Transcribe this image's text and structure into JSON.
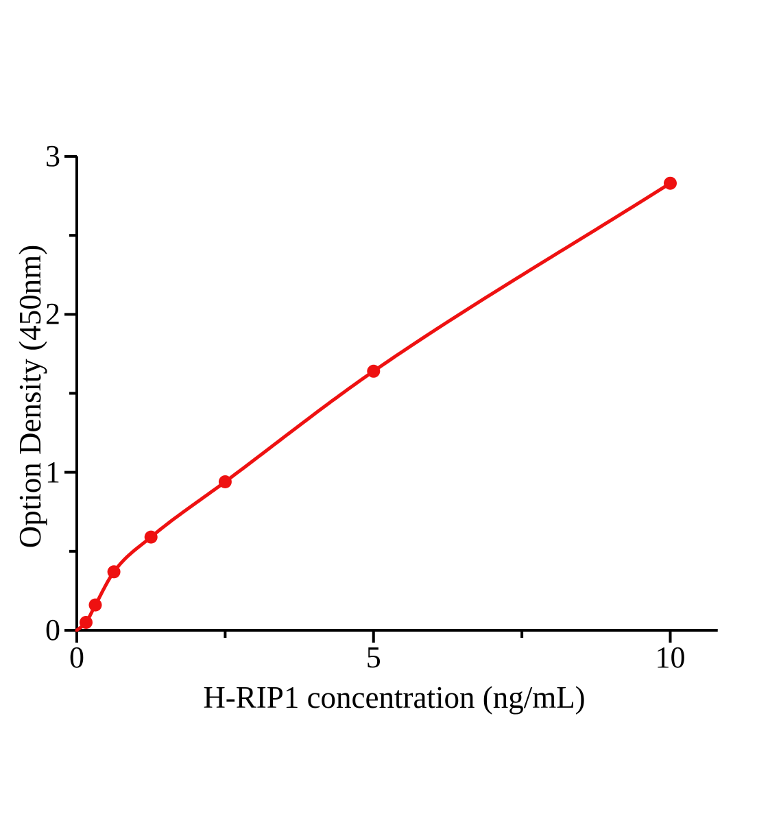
{
  "figure": {
    "background": "#ffffff"
  },
  "chart_data": {
    "type": "scatter",
    "title": "",
    "xlabel": "H-RIP1 concentration (ng/mL)",
    "ylabel": "Option Density (450nm)",
    "x": [
      0.156,
      0.3125,
      0.625,
      1.25,
      2.5,
      5,
      10
    ],
    "y": [
      0.05,
      0.16,
      0.37,
      0.59,
      0.94,
      1.64,
      2.83
    ],
    "fit_curve_starts_at_origin": true,
    "xlim": [
      0,
      10.8
    ],
    "ylim": [
      0,
      3
    ],
    "x_major_ticks": [
      0,
      5,
      10
    ],
    "x_tick_labels": [
      "0",
      "5",
      "10"
    ],
    "x_minor_ticks": [
      2.5,
      7.5
    ],
    "y_major_ticks": [
      0,
      1,
      2,
      3
    ],
    "y_tick_labels": [
      "0",
      "1",
      "2",
      "3"
    ],
    "y_minor_ticks": [
      0.5,
      1.5,
      2.5
    ],
    "grid": false,
    "legend": "none",
    "marker": "circle",
    "colors": {
      "series": "#ee1111",
      "axis": "#000000",
      "text": "#000000",
      "background": "#ffffff"
    }
  }
}
